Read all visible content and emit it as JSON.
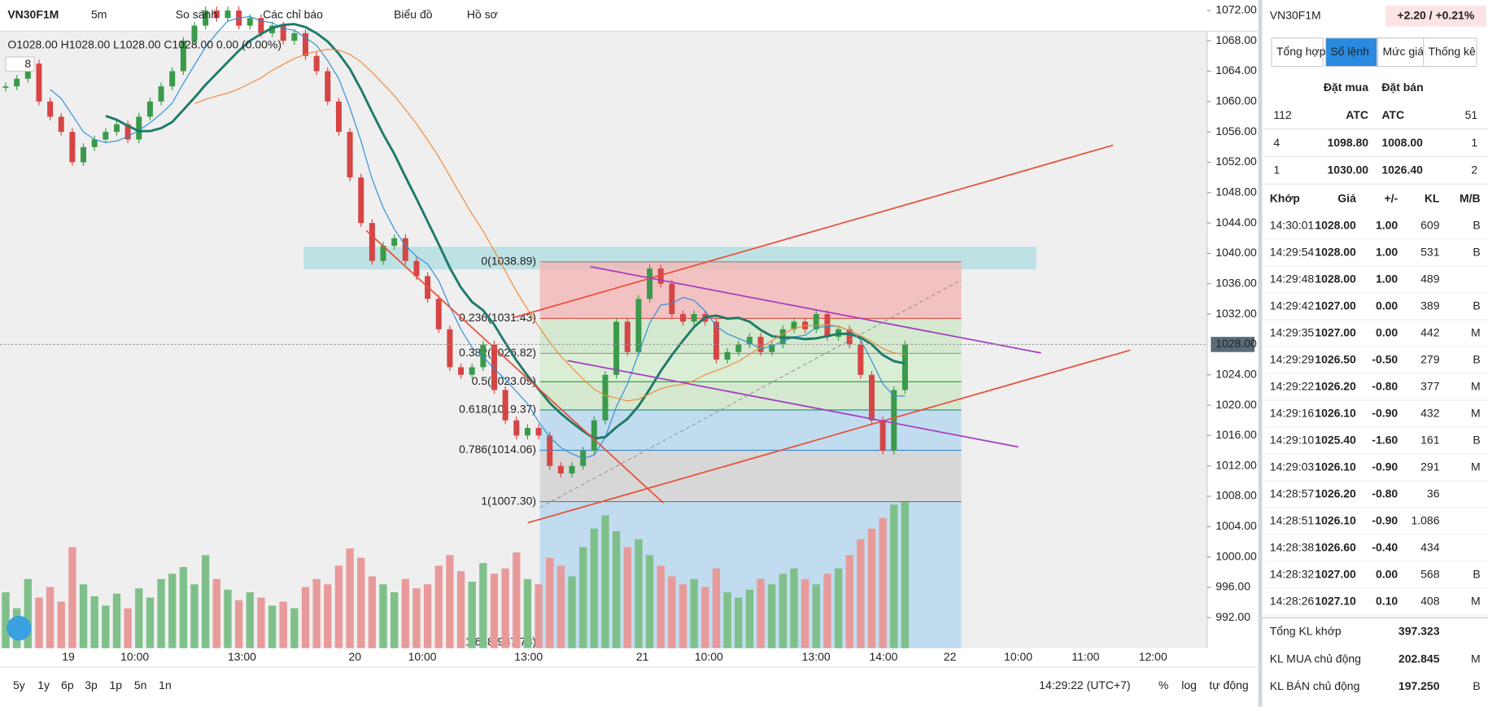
{
  "toolbar": {
    "symbol": "VN30F1M",
    "interval": "5m",
    "items": [
      "So sánh",
      "Các chỉ báo",
      "Biểu đồ",
      "Hồ sơ"
    ]
  },
  "chart": {
    "legend": "O1028.00 H1028.00 L1028.00 C1028.00 0.00 (0.00%)",
    "indicator_count": "8",
    "ylim": [
      992,
      1072
    ],
    "yticks": [
      {
        "value": 1072,
        "label": "1072.00"
      },
      {
        "value": 1068,
        "label": "1068.00"
      },
      {
        "value": 1064,
        "label": "1064.00"
      },
      {
        "value": 1060,
        "label": "1060.00"
      },
      {
        "value": 1056,
        "label": "1056.00"
      },
      {
        "value": 1052,
        "label": "1052.00"
      },
      {
        "value": 1048,
        "label": "1048.00"
      },
      {
        "value": 1044,
        "label": "1044.00"
      },
      {
        "value": 1040,
        "label": "1040.00"
      },
      {
        "value": 1036,
        "label": "1036.00"
      },
      {
        "value": 1032,
        "label": "1032.00"
      },
      {
        "value": 1024,
        "label": "1024.00"
      },
      {
        "value": 1020,
        "label": "1020.00"
      },
      {
        "value": 1016,
        "label": "1016.00"
      },
      {
        "value": 1012,
        "label": "1012.00"
      },
      {
        "value": 1008,
        "label": "1008.00"
      },
      {
        "value": 1004,
        "label": "1004.00"
      },
      {
        "value": 1000,
        "label": "1000.00"
      },
      {
        "value": 996,
        "label": "996.00"
      },
      {
        "value": 992,
        "label": "992.00"
      }
    ],
    "last_price": {
      "value": 1028,
      "label": "1028.00"
    },
    "time_labels": [
      "19",
      "10:00",
      "13:00",
      "20",
      "10:00",
      "13:00",
      "21",
      "10:00",
      "13:00",
      "14:00",
      "22",
      "10:00",
      "11:00",
      "12:00"
    ],
    "closes": [
      1062,
      1063,
      1065,
      1060,
      1058,
      1056,
      1052,
      1054,
      1055,
      1056,
      1057,
      1055,
      1058,
      1060,
      1062,
      1064,
      1068,
      1070,
      1072,
      1071,
      1072,
      1070,
      1071,
      1069,
      1070,
      1068,
      1069,
      1066,
      1064,
      1060,
      1056,
      1050,
      1044,
      1039,
      1041,
      1042,
      1039,
      1037,
      1034,
      1030,
      1025,
      1024,
      1025,
      1028,
      1022,
      1018,
      1016,
      1017,
      1016,
      1012,
      1011,
      1012,
      1014,
      1018,
      1024,
      1031,
      1027,
      1034,
      1038,
      1036,
      1032,
      1031,
      1032,
      1031,
      1026,
      1027,
      1028,
      1029,
      1027,
      1028,
      1030,
      1031,
      1030,
      1032,
      1029,
      1030,
      1028,
      1024,
      1018,
      1014,
      1022,
      1028
    ],
    "volumes": [
      420,
      300,
      520,
      380,
      460,
      350,
      760,
      480,
      390,
      320,
      410,
      300,
      450,
      380,
      520,
      560,
      610,
      480,
      700,
      520,
      440,
      360,
      420,
      380,
      320,
      350,
      300,
      460,
      520,
      480,
      620,
      750,
      680,
      540,
      480,
      420,
      520,
      450,
      480,
      620,
      700,
      580,
      500,
      640,
      560,
      600,
      720,
      520,
      480,
      680,
      620,
      540,
      760,
      900,
      1000,
      880,
      760,
      820,
      700,
      620,
      540,
      480,
      520,
      460,
      600,
      420,
      380,
      440,
      520,
      480,
      560,
      600,
      520,
      480,
      560,
      600,
      700,
      820,
      900,
      980,
      1080,
      1100
    ],
    "fib_levels": [
      {
        "label": "0(1038.89)",
        "price": 1038.89
      },
      {
        "label": "0.236(1031.43)",
        "price": 1031.43
      },
      {
        "label": "0.382(1026.82)",
        "price": 1026.82
      },
      {
        "label": "0.5(1023.09)",
        "price": 1023.09
      },
      {
        "label": "0.618(1019.37)",
        "price": 1019.37
      },
      {
        "label": "0.786(1014.06)",
        "price": 1014.06
      },
      {
        "label": "1(1007.30)",
        "price": 1007.3
      },
      {
        "label": "1.618(987.78)",
        "price": 987.78
      }
    ]
  },
  "bottom_bar": {
    "ranges": [
      "5y",
      "1y",
      "6p",
      "3p",
      "1p",
      "5n",
      "1n"
    ],
    "clock": "14:29:22 (UTC+7)",
    "options": [
      "%",
      "log",
      "tự động"
    ]
  },
  "panel": {
    "symbol": "VN30F1M",
    "change": "+2.20 / +0.21%",
    "tabs": [
      "Tổng hợp",
      "Sổ lệnh",
      "Mức giá",
      "Thống kê"
    ],
    "book_header": [
      "Đặt mua",
      "Đặt bán"
    ],
    "book_rows": [
      [
        "112",
        "ATC",
        "ATC",
        "51"
      ],
      [
        "4",
        "1098.80",
        "1008.00",
        "1"
      ],
      [
        "1",
        "1030.00",
        "1026.40",
        "2"
      ]
    ],
    "trade_header": [
      "Khớp",
      "Giá",
      "+/-",
      "KL",
      "M/B"
    ],
    "trades": [
      [
        "14:30:01",
        "1028.00",
        "1.00",
        "609",
        "B"
      ],
      [
        "14:29:54",
        "1028.00",
        "1.00",
        "531",
        "B"
      ],
      [
        "14:29:48",
        "1028.00",
        "1.00",
        "489",
        ""
      ],
      [
        "14:29:42",
        "1027.00",
        "0.00",
        "389",
        "B"
      ],
      [
        "14:29:35",
        "1027.00",
        "0.00",
        "442",
        "M"
      ],
      [
        "14:29:29",
        "1026.50",
        "-0.50",
        "279",
        "B"
      ],
      [
        "14:29:22",
        "1026.20",
        "-0.80",
        "377",
        "M"
      ],
      [
        "14:29:16",
        "1026.10",
        "-0.90",
        "432",
        "M"
      ],
      [
        "14:29:10",
        "1025.40",
        "-1.60",
        "161",
        "B"
      ],
      [
        "14:29:03",
        "1026.10",
        "-0.90",
        "291",
        "M"
      ],
      [
        "14:28:57",
        "1026.20",
        "-0.80",
        "36",
        ""
      ],
      [
        "14:28:51",
        "1026.10",
        "-0.90",
        "1.086",
        ""
      ],
      [
        "14:28:38",
        "1026.60",
        "-0.40",
        "434",
        ""
      ],
      [
        "14:28:32",
        "1027.00",
        "0.00",
        "568",
        "B"
      ],
      [
        "14:28:26",
        "1027.10",
        "0.10",
        "408",
        "M"
      ]
    ],
    "summary": [
      [
        "Tổng KL khớp",
        "397.323",
        ""
      ],
      [
        "KL MUA chủ động",
        "202.845",
        "M"
      ],
      [
        "KL BÁN chủ động",
        "197.250",
        "B"
      ]
    ]
  }
}
